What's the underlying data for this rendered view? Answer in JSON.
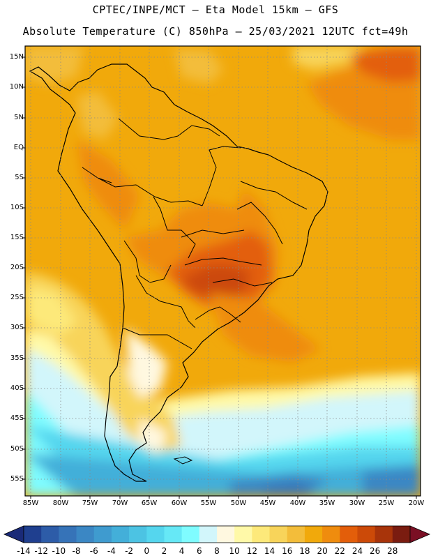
{
  "header": {
    "line1": "CPTEC/INPE/MCT –  Eta Model 15km – GFS",
    "line2": "Absolute Temperature (C) 850hPa – 25/03/2021 12UTC fct=49h"
  },
  "latitude_labels": [
    "15N",
    "10N",
    "5N",
    "EQ",
    "5S",
    "10S",
    "15S",
    "20S",
    "25S",
    "30S",
    "35S",
    "40S",
    "45S",
    "50S",
    "55S"
  ],
  "longitude_labels": [
    "85W",
    "80W",
    "75W",
    "70W",
    "65W",
    "60W",
    "55W",
    "50W",
    "45W",
    "40W",
    "35W",
    "30W",
    "25W",
    "20W"
  ],
  "colorbar": {
    "labels": [
      "-14",
      "-12",
      "-10",
      "-8",
      "-6",
      "-4",
      "-2",
      "0",
      "2",
      "4",
      "6",
      "8",
      "10",
      "12",
      "14",
      "16",
      "18",
      "20",
      "22",
      "24",
      "26",
      "28"
    ],
    "colors": [
      "#1f3f8f",
      "#2d5ca8",
      "#3673b8",
      "#3b87c4",
      "#3f9bcf",
      "#43afd9",
      "#4cc3e3",
      "#55d6ee",
      "#66e8f6",
      "#7ffcff",
      "#d2f6fb",
      "#fff8e0",
      "#fff9a8",
      "#fde97a",
      "#f8d45a",
      "#f3bd3a",
      "#f1a90b",
      "#ef8c0e",
      "#e35e0a",
      "#cc4a08",
      "#a8340a",
      "#7a1c10"
    ],
    "under_color": "#1a2a78",
    "over_color": "#7a0f24"
  }
}
